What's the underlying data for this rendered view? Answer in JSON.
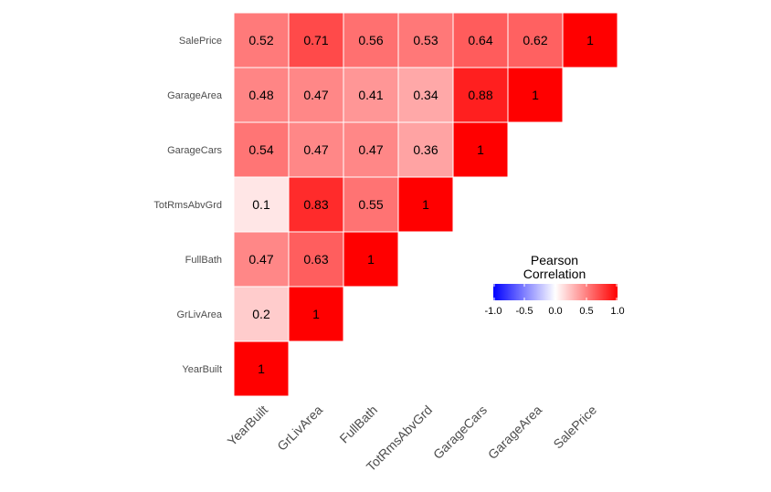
{
  "chart_data": {
    "type": "heatmap",
    "variables": [
      "YearBuilt",
      "GrLivArea",
      "FullBath",
      "TotRmsAbvGrd",
      "GarageCars",
      "GarageArea",
      "SalePrice"
    ],
    "cells": [
      {
        "x": "YearBuilt",
        "y": "YearBuilt",
        "value": 1,
        "label": "1"
      },
      {
        "x": "YearBuilt",
        "y": "GrLivArea",
        "value": 0.2,
        "label": "0.2"
      },
      {
        "x": "YearBuilt",
        "y": "FullBath",
        "value": 0.47,
        "label": "0.47"
      },
      {
        "x": "YearBuilt",
        "y": "TotRmsAbvGrd",
        "value": 0.1,
        "label": "0.1"
      },
      {
        "x": "YearBuilt",
        "y": "GarageCars",
        "value": 0.54,
        "label": "0.54"
      },
      {
        "x": "YearBuilt",
        "y": "GarageArea",
        "value": 0.48,
        "label": "0.48"
      },
      {
        "x": "YearBuilt",
        "y": "SalePrice",
        "value": 0.52,
        "label": "0.52"
      },
      {
        "x": "GrLivArea",
        "y": "GrLivArea",
        "value": 1,
        "label": "1"
      },
      {
        "x": "GrLivArea",
        "y": "FullBath",
        "value": 0.63,
        "label": "0.63"
      },
      {
        "x": "GrLivArea",
        "y": "TotRmsAbvGrd",
        "value": 0.83,
        "label": "0.83"
      },
      {
        "x": "GrLivArea",
        "y": "GarageCars",
        "value": 0.47,
        "label": "0.47"
      },
      {
        "x": "GrLivArea",
        "y": "GarageArea",
        "value": 0.47,
        "label": "0.47"
      },
      {
        "x": "GrLivArea",
        "y": "SalePrice",
        "value": 0.71,
        "label": "0.71"
      },
      {
        "x": "FullBath",
        "y": "FullBath",
        "value": 1,
        "label": "1"
      },
      {
        "x": "FullBath",
        "y": "TotRmsAbvGrd",
        "value": 0.55,
        "label": "0.55"
      },
      {
        "x": "FullBath",
        "y": "GarageCars",
        "value": 0.47,
        "label": "0.47"
      },
      {
        "x": "FullBath",
        "y": "GarageArea",
        "value": 0.41,
        "label": "0.41"
      },
      {
        "x": "FullBath",
        "y": "SalePrice",
        "value": 0.56,
        "label": "0.56"
      },
      {
        "x": "TotRmsAbvGrd",
        "y": "TotRmsAbvGrd",
        "value": 1,
        "label": "1"
      },
      {
        "x": "TotRmsAbvGrd",
        "y": "GarageCars",
        "value": 0.36,
        "label": "0.36"
      },
      {
        "x": "TotRmsAbvGrd",
        "y": "GarageArea",
        "value": 0.34,
        "label": "0.34"
      },
      {
        "x": "TotRmsAbvGrd",
        "y": "SalePrice",
        "value": 0.53,
        "label": "0.53"
      },
      {
        "x": "GarageCars",
        "y": "GarageCars",
        "value": 1,
        "label": "1"
      },
      {
        "x": "GarageCars",
        "y": "GarageArea",
        "value": 0.88,
        "label": "0.88"
      },
      {
        "x": "GarageCars",
        "y": "SalePrice",
        "value": 0.64,
        "label": "0.64"
      },
      {
        "x": "GarageArea",
        "y": "GarageArea",
        "value": 1,
        "label": "1"
      },
      {
        "x": "GarageArea",
        "y": "SalePrice",
        "value": 0.62,
        "label": "0.62"
      },
      {
        "x": "SalePrice",
        "y": "SalePrice",
        "value": 1,
        "label": "1"
      }
    ],
    "legend": {
      "title_line1": "Pearson",
      "title_line2": "Correlation",
      "ticks": [
        {
          "value": -1,
          "label": "-1.0"
        },
        {
          "value": -0.5,
          "label": "-0.5"
        },
        {
          "value": 0,
          "label": "0.0"
        },
        {
          "value": 0.5,
          "label": "0.5"
        },
        {
          "value": 1,
          "label": "1.0"
        }
      ],
      "range": [
        -1,
        1
      ],
      "placement": "right-middle"
    },
    "colors": {
      "low": "#0000ff",
      "mid": "#ffffff",
      "high": "#ff0000"
    }
  }
}
